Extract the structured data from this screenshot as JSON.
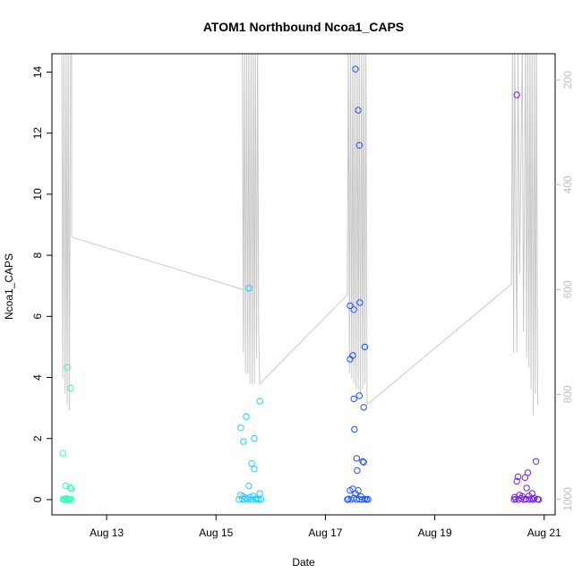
{
  "chart_data": {
    "type": "scatter",
    "title": "ATOM1 Northbound Ncoa1_CAPS",
    "xlabel": "Date",
    "ylabel": "Ncoa1_CAPS",
    "x_unit": "days in August",
    "xlim": [
      12.0,
      21.2
    ],
    "ylim": [
      -0.5,
      14.6
    ],
    "y_ticks": [
      0,
      2,
      4,
      6,
      8,
      10,
      12,
      14
    ],
    "x_ticks": [
      13,
      15,
      17,
      19,
      21
    ],
    "x_tick_labels": [
      "Aug 13",
      "Aug 15",
      "Aug 17",
      "Aug 19",
      "Aug 21"
    ],
    "y2_ticks": [
      200,
      400,
      600,
      800,
      1000
    ],
    "y2_lim_top_to_bottom": [
      150,
      1030
    ],
    "grid": false,
    "series": [
      {
        "kind": "points",
        "color": "#33ffbb",
        "points": [
          [
            12.2,
            1.52
          ],
          [
            12.25,
            0.45
          ],
          [
            12.33,
            0.4
          ],
          [
            12.35,
            0.36
          ],
          [
            12.28,
            4.33
          ],
          [
            12.34,
            3.65
          ],
          [
            12.2,
            0.02
          ],
          [
            12.22,
            0.0
          ],
          [
            12.24,
            0.01
          ],
          [
            12.26,
            0.03
          ],
          [
            12.28,
            0.0
          ],
          [
            12.3,
            0.02
          ],
          [
            12.32,
            0.0
          ],
          [
            12.36,
            0.01
          ],
          [
            12.27,
            0.04
          ],
          [
            12.31,
            0.01
          ]
        ]
      },
      {
        "kind": "points",
        "color": "#22ccff",
        "points": [
          [
            15.6,
            6.92
          ],
          [
            15.8,
            3.22
          ],
          [
            15.55,
            2.72
          ],
          [
            15.45,
            2.35
          ],
          [
            15.7,
            2.0
          ],
          [
            15.5,
            1.9
          ],
          [
            15.65,
            1.18
          ],
          [
            15.7,
            1.0
          ],
          [
            15.6,
            0.45
          ],
          [
            15.8,
            0.2
          ],
          [
            15.45,
            0.15
          ],
          [
            15.5,
            0.1
          ],
          [
            15.55,
            0.05
          ],
          [
            15.62,
            0.08
          ],
          [
            15.68,
            0.12
          ],
          [
            15.75,
            0.03
          ],
          [
            15.42,
            0.0
          ],
          [
            15.48,
            0.02
          ],
          [
            15.52,
            0.0
          ],
          [
            15.58,
            0.01
          ],
          [
            15.64,
            0.0
          ],
          [
            15.72,
            0.02
          ],
          [
            15.78,
            0.0
          ],
          [
            15.82,
            0.01
          ]
        ]
      },
      {
        "kind": "points",
        "color": "#2255ee",
        "points": [
          [
            17.55,
            14.1
          ],
          [
            17.6,
            12.75
          ],
          [
            17.62,
            11.6
          ],
          [
            17.45,
            6.35
          ],
          [
            17.52,
            6.22
          ],
          [
            17.63,
            6.45
          ],
          [
            17.72,
            5.0
          ],
          [
            17.45,
            4.6
          ],
          [
            17.5,
            4.72
          ],
          [
            17.62,
            3.4
          ],
          [
            17.52,
            3.3
          ],
          [
            17.7,
            3.02
          ],
          [
            17.53,
            2.3
          ],
          [
            17.57,
            1.35
          ],
          [
            17.68,
            1.25
          ],
          [
            17.7,
            1.22
          ],
          [
            17.58,
            0.95
          ],
          [
            17.45,
            0.3
          ],
          [
            17.5,
            0.35
          ],
          [
            17.55,
            0.2
          ],
          [
            17.6,
            0.3
          ],
          [
            17.65,
            0.1
          ],
          [
            17.4,
            0.0
          ],
          [
            17.42,
            0.02
          ],
          [
            17.47,
            0.0
          ],
          [
            17.52,
            0.05
          ],
          [
            17.57,
            0.0
          ],
          [
            17.62,
            0.01
          ],
          [
            17.67,
            0.0
          ],
          [
            17.72,
            0.02
          ],
          [
            17.75,
            0.0
          ],
          [
            17.78,
            0.01
          ]
        ]
      },
      {
        "kind": "points",
        "color": "#7722dd",
        "points": [
          [
            20.5,
            13.25
          ],
          [
            20.85,
            1.25
          ],
          [
            20.7,
            0.88
          ],
          [
            20.52,
            0.75
          ],
          [
            20.65,
            0.72
          ],
          [
            20.5,
            0.6
          ],
          [
            20.68,
            0.38
          ],
          [
            20.78,
            0.2
          ],
          [
            20.55,
            0.15
          ],
          [
            20.6,
            0.1
          ],
          [
            20.72,
            0.12
          ],
          [
            20.82,
            0.05
          ],
          [
            20.45,
            0.0
          ],
          [
            20.48,
            0.02
          ],
          [
            20.53,
            0.0
          ],
          [
            20.58,
            0.04
          ],
          [
            20.63,
            0.0
          ],
          [
            20.67,
            0.01
          ],
          [
            20.73,
            0.0
          ],
          [
            20.77,
            0.02
          ],
          [
            20.8,
            0.0
          ],
          [
            20.88,
            0.01
          ],
          [
            20.9,
            0.0
          ],
          [
            20.46,
            0.08
          ]
        ]
      },
      {
        "kind": "line",
        "axis": "right",
        "color": "#c8c8c8",
        "points": [
          [
            12.18,
            130
          ],
          [
            12.2,
            770
          ],
          [
            12.22,
            130
          ],
          [
            12.24,
            800
          ],
          [
            12.26,
            130
          ],
          [
            12.28,
            820
          ],
          [
            12.3,
            130
          ],
          [
            12.32,
            830
          ],
          [
            12.34,
            130
          ],
          [
            12.36,
            130
          ],
          [
            12.36,
            500
          ],
          [
            15.5,
            600
          ],
          [
            15.48,
            130
          ],
          [
            15.5,
            720
          ],
          [
            15.52,
            130
          ],
          [
            15.54,
            760
          ],
          [
            15.56,
            130
          ],
          [
            15.58,
            760
          ],
          [
            15.6,
            130
          ],
          [
            15.62,
            780
          ],
          [
            15.64,
            130
          ],
          [
            15.66,
            780
          ],
          [
            15.68,
            130
          ],
          [
            15.7,
            780
          ],
          [
            15.72,
            130
          ],
          [
            15.74,
            730
          ],
          [
            15.76,
            130
          ],
          [
            15.78,
            680
          ],
          [
            15.8,
            780
          ],
          [
            17.4,
            610
          ],
          [
            17.42,
            130
          ],
          [
            17.44,
            760
          ],
          [
            17.46,
            130
          ],
          [
            17.48,
            770
          ],
          [
            17.5,
            130
          ],
          [
            17.52,
            780
          ],
          [
            17.54,
            130
          ],
          [
            17.56,
            790
          ],
          [
            17.58,
            130
          ],
          [
            17.6,
            790
          ],
          [
            17.62,
            130
          ],
          [
            17.64,
            800
          ],
          [
            17.66,
            130
          ],
          [
            17.68,
            790
          ],
          [
            17.7,
            130
          ],
          [
            17.72,
            780
          ],
          [
            17.74,
            130
          ],
          [
            17.76,
            820
          ],
          [
            20.4,
            590
          ],
          [
            20.42,
            130
          ],
          [
            20.44,
            720
          ],
          [
            20.46,
            130
          ],
          [
            20.5,
            720
          ],
          [
            20.52,
            130
          ],
          [
            20.55,
            570
          ],
          [
            20.6,
            130
          ],
          [
            20.62,
            680
          ],
          [
            20.66,
            130
          ],
          [
            20.68,
            730
          ],
          [
            20.7,
            130
          ],
          [
            20.72,
            750
          ],
          [
            20.74,
            130
          ],
          [
            20.76,
            790
          ],
          [
            20.78,
            130
          ],
          [
            20.8,
            840
          ],
          [
            20.82,
            130
          ],
          [
            20.84,
            800
          ],
          [
            20.86,
            130
          ],
          [
            20.88,
            820
          ]
        ]
      }
    ]
  }
}
